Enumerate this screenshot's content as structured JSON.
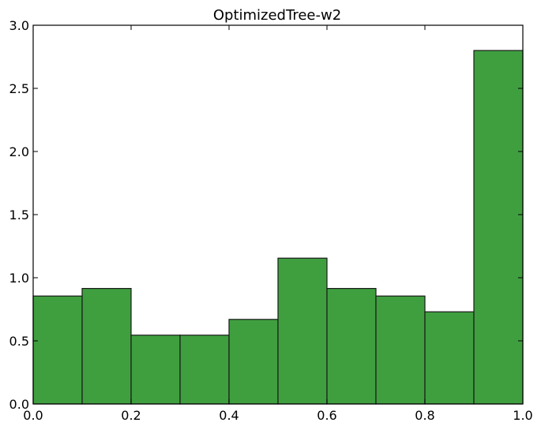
{
  "colors": {
    "bar_fill": "#3f9f3f",
    "bar_edge": "#1a1a1a",
    "axes": "#000000",
    "background": "#ffffff"
  },
  "chart_data": {
    "type": "bar",
    "title": "OptimizedTree-w2",
    "xlabel": "",
    "ylabel": "",
    "xlim": [
      0.0,
      1.0
    ],
    "ylim": [
      0.0,
      3.0
    ],
    "grid": false,
    "legend": "none",
    "bins": [
      {
        "x0": 0.0,
        "x1": 0.1,
        "value": 0.855
      },
      {
        "x0": 0.1,
        "x1": 0.2,
        "value": 0.915
      },
      {
        "x0": 0.2,
        "x1": 0.3,
        "value": 0.545
      },
      {
        "x0": 0.3,
        "x1": 0.4,
        "value": 0.545
      },
      {
        "x0": 0.4,
        "x1": 0.5,
        "value": 0.67
      },
      {
        "x0": 0.5,
        "x1": 0.6,
        "value": 1.155
      },
      {
        "x0": 0.6,
        "x1": 0.7,
        "value": 0.915
      },
      {
        "x0": 0.7,
        "x1": 0.8,
        "value": 0.855
      },
      {
        "x0": 0.8,
        "x1": 0.9,
        "value": 0.73
      },
      {
        "x0": 0.9,
        "x1": 1.0,
        "value": 2.8
      }
    ],
    "x_ticks": [
      {
        "value": 0.0,
        "label": "0.0"
      },
      {
        "value": 0.2,
        "label": "0.2"
      },
      {
        "value": 0.4,
        "label": "0.4"
      },
      {
        "value": 0.6,
        "label": "0.6"
      },
      {
        "value": 0.8,
        "label": "0.8"
      },
      {
        "value": 1.0,
        "label": "1.0"
      }
    ],
    "y_ticks": [
      {
        "value": 0.0,
        "label": "0.0"
      },
      {
        "value": 0.5,
        "label": "0.5"
      },
      {
        "value": 1.0,
        "label": "1.0"
      },
      {
        "value": 1.5,
        "label": "1.5"
      },
      {
        "value": 2.0,
        "label": "2.0"
      },
      {
        "value": 2.5,
        "label": "2.5"
      },
      {
        "value": 3.0,
        "label": "3.0"
      }
    ]
  }
}
